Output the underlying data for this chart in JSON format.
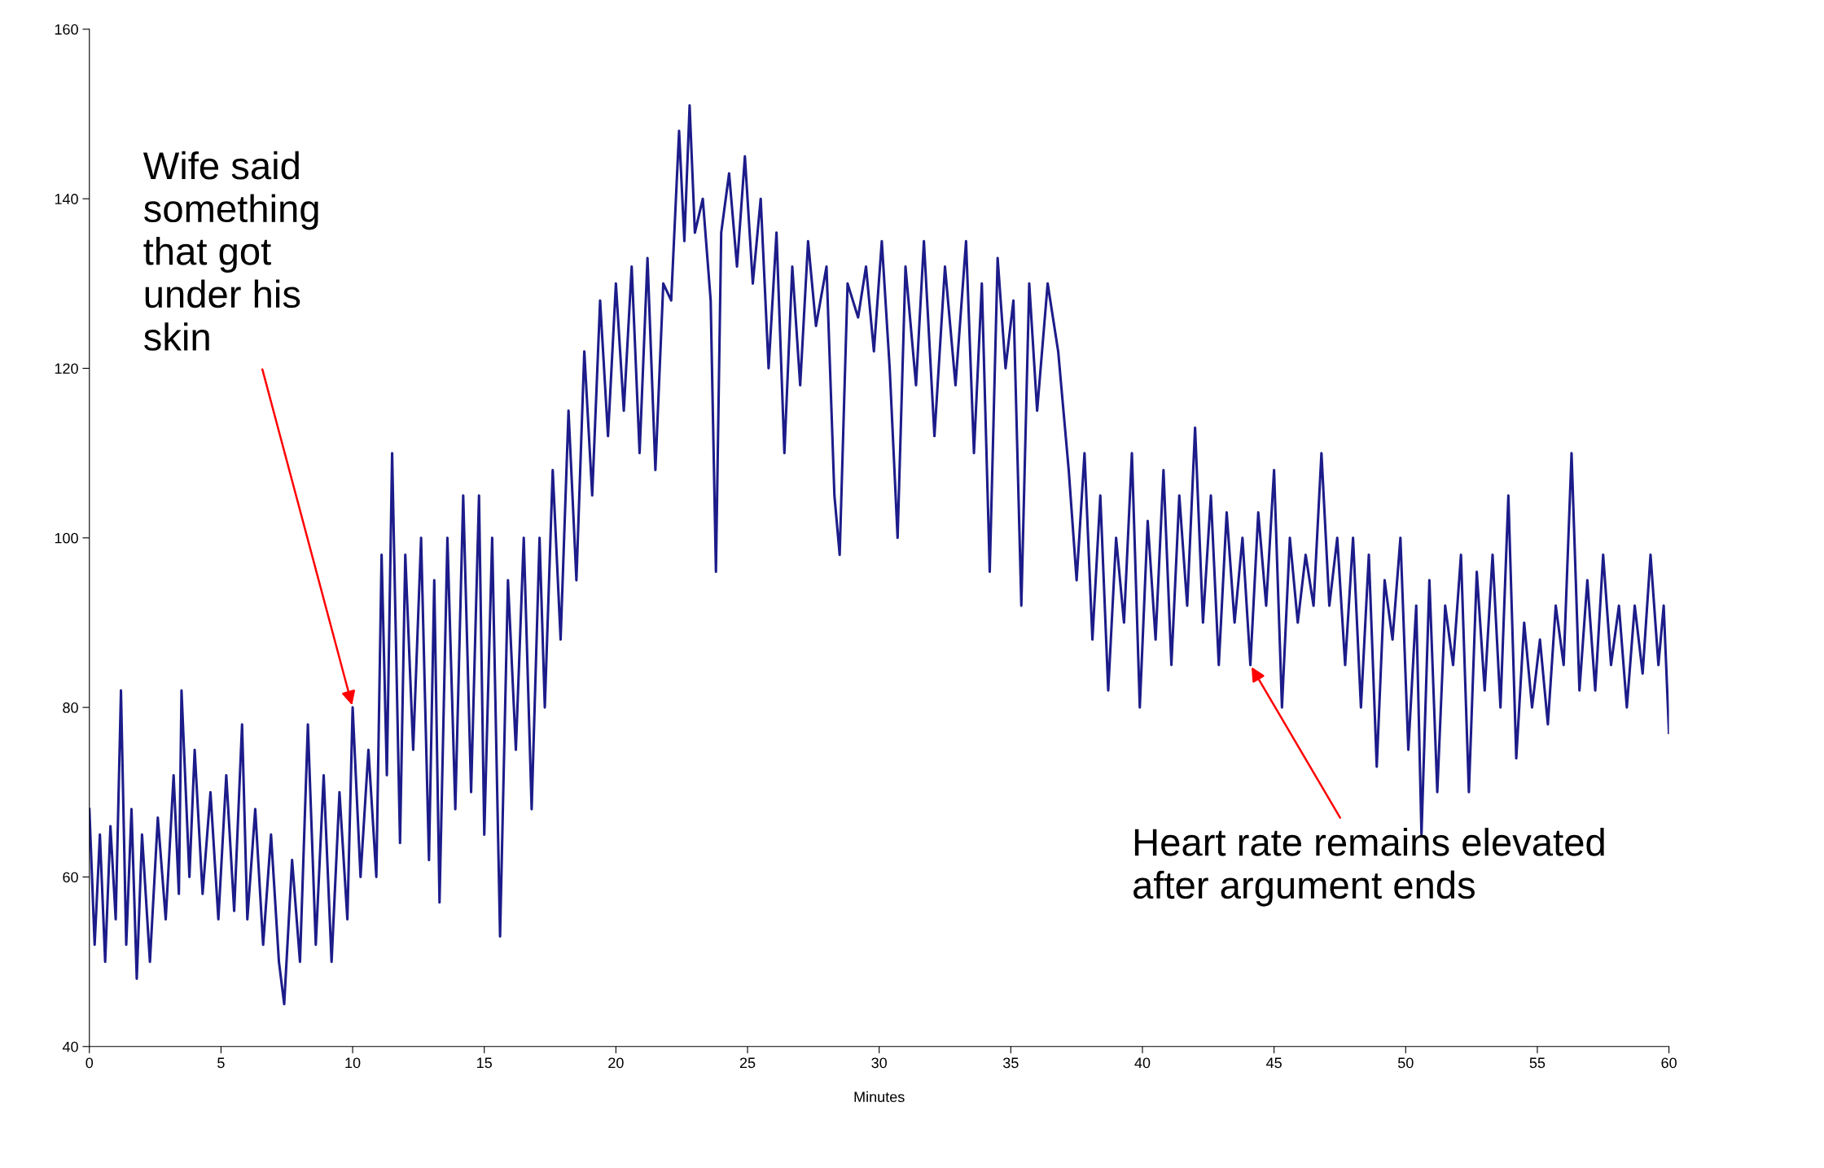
{
  "chart_data": {
    "type": "line",
    "xlabel": "Minutes",
    "x": [
      0,
      0.2,
      0.4,
      0.6,
      0.8,
      1.0,
      1.2,
      1.4,
      1.6,
      1.8,
      2.0,
      2.3,
      2.6,
      2.9,
      3.2,
      3.4,
      3.5,
      3.8,
      4.0,
      4.3,
      4.6,
      4.9,
      5.2,
      5.5,
      5.8,
      6.0,
      6.3,
      6.6,
      6.9,
      7.2,
      7.4,
      7.7,
      8.0,
      8.3,
      8.6,
      8.9,
      9.2,
      9.5,
      9.8,
      10.0,
      10.3,
      10.6,
      10.9,
      11.1,
      11.3,
      11.5,
      11.8,
      12.0,
      12.3,
      12.6,
      12.9,
      13.1,
      13.3,
      13.6,
      13.9,
      14.2,
      14.5,
      14.8,
      15.0,
      15.3,
      15.6,
      15.9,
      16.2,
      16.5,
      16.8,
      17.1,
      17.3,
      17.6,
      17.9,
      18.2,
      18.5,
      18.8,
      19.1,
      19.4,
      19.7,
      20.0,
      20.3,
      20.6,
      20.9,
      21.2,
      21.5,
      21.8,
      22.1,
      22.4,
      22.6,
      22.8,
      23.0,
      23.3,
      23.6,
      23.8,
      24.0,
      24.3,
      24.6,
      24.9,
      25.2,
      25.5,
      25.8,
      26.1,
      26.4,
      26.7,
      27.0,
      27.3,
      27.6,
      28.0,
      28.3,
      28.5,
      28.8,
      29.2,
      29.5,
      29.8,
      30.1,
      30.4,
      30.7,
      31.0,
      31.4,
      31.7,
      32.1,
      32.5,
      32.9,
      33.3,
      33.6,
      33.9,
      34.2,
      34.5,
      34.8,
      35.1,
      35.4,
      35.7,
      36.0,
      36.4,
      36.8,
      37.2,
      37.5,
      37.8,
      38.1,
      38.4,
      38.7,
      39.0,
      39.3,
      39.6,
      39.9,
      40.2,
      40.5,
      40.8,
      41.1,
      41.4,
      41.7,
      42.0,
      42.3,
      42.6,
      42.9,
      43.2,
      43.5,
      43.8,
      44.1,
      44.4,
      44.7,
      45.0,
      45.3,
      45.6,
      45.9,
      46.2,
      46.5,
      46.8,
      47.1,
      47.4,
      47.7,
      48.0,
      48.3,
      48.6,
      48.9,
      49.2,
      49.5,
      49.8,
      50.1,
      50.4,
      50.6,
      50.9,
      51.2,
      51.5,
      51.8,
      52.1,
      52.4,
      52.7,
      53.0,
      53.3,
      53.6,
      53.9,
      54.2,
      54.5,
      54.8,
      55.1,
      55.4,
      55.7,
      56.0,
      56.3,
      56.6,
      56.9,
      57.2,
      57.5,
      57.8,
      58.1,
      58.4,
      58.7,
      59.0,
      59.3,
      59.6,
      59.8,
      60.0
    ],
    "series": [
      {
        "color": "#1c1c8a",
        "values": [
          68,
          52,
          65,
          50,
          66,
          55,
          82,
          52,
          68,
          48,
          65,
          50,
          67,
          55,
          72,
          58,
          82,
          60,
          75,
          58,
          70,
          55,
          72,
          56,
          78,
          55,
          68,
          52,
          65,
          50,
          45,
          62,
          50,
          78,
          52,
          72,
          50,
          70,
          55,
          80,
          60,
          75,
          60,
          98,
          72,
          110,
          64,
          98,
          75,
          100,
          62,
          95,
          57,
          100,
          68,
          105,
          70,
          105,
          65,
          100,
          53,
          95,
          75,
          100,
          68,
          100,
          80,
          108,
          88,
          115,
          95,
          122,
          105,
          128,
          112,
          130,
          115,
          132,
          110,
          133,
          108,
          130,
          128,
          148,
          135,
          151,
          136,
          140,
          128,
          96,
          136,
          143,
          132,
          145,
          130,
          140,
          120,
          136,
          110,
          132,
          118,
          135,
          125,
          132,
          105,
          98,
          130,
          126,
          132,
          122,
          135,
          120,
          100,
          132,
          118,
          135,
          112,
          132,
          118,
          135,
          110,
          130,
          96,
          133,
          120,
          128,
          92,
          130,
          115,
          130,
          122,
          108,
          95,
          110,
          88,
          105,
          82,
          100,
          90,
          110,
          80,
          102,
          88,
          108,
          85,
          105,
          92,
          113,
          90,
          105,
          85,
          103,
          90,
          100,
          85,
          103,
          92,
          108,
          80,
          100,
          90,
          98,
          92,
          110,
          92,
          100,
          85,
          100,
          80,
          98,
          73,
          95,
          88,
          100,
          75,
          92,
          65,
          95,
          70,
          92,
          85,
          98,
          70,
          96,
          82,
          98,
          80,
          105,
          74,
          90,
          80,
          88,
          78,
          92,
          85,
          110,
          82,
          95,
          82,
          98,
          85,
          92,
          80,
          92,
          84,
          98,
          85,
          92,
          77
        ]
      }
    ],
    "xlim": [
      0,
      60
    ],
    "xticks": [
      0,
      5,
      10,
      15,
      20,
      25,
      30,
      35,
      40,
      45,
      50,
      55,
      60
    ],
    "ylim": [
      40,
      160
    ],
    "yticks": [
      40,
      60,
      80,
      100,
      120,
      140,
      160
    ],
    "grid": false,
    "legend": false,
    "marker": "none",
    "line_style": "solid",
    "annotations": [
      {
        "text": "Wife said\nsomething\nthat got\nunder his\nskin",
        "x": 10,
        "y": 80
      },
      {
        "text": "Heart rate remains elevated\nafter argument ends",
        "x": 44.1,
        "y": 85
      }
    ]
  }
}
